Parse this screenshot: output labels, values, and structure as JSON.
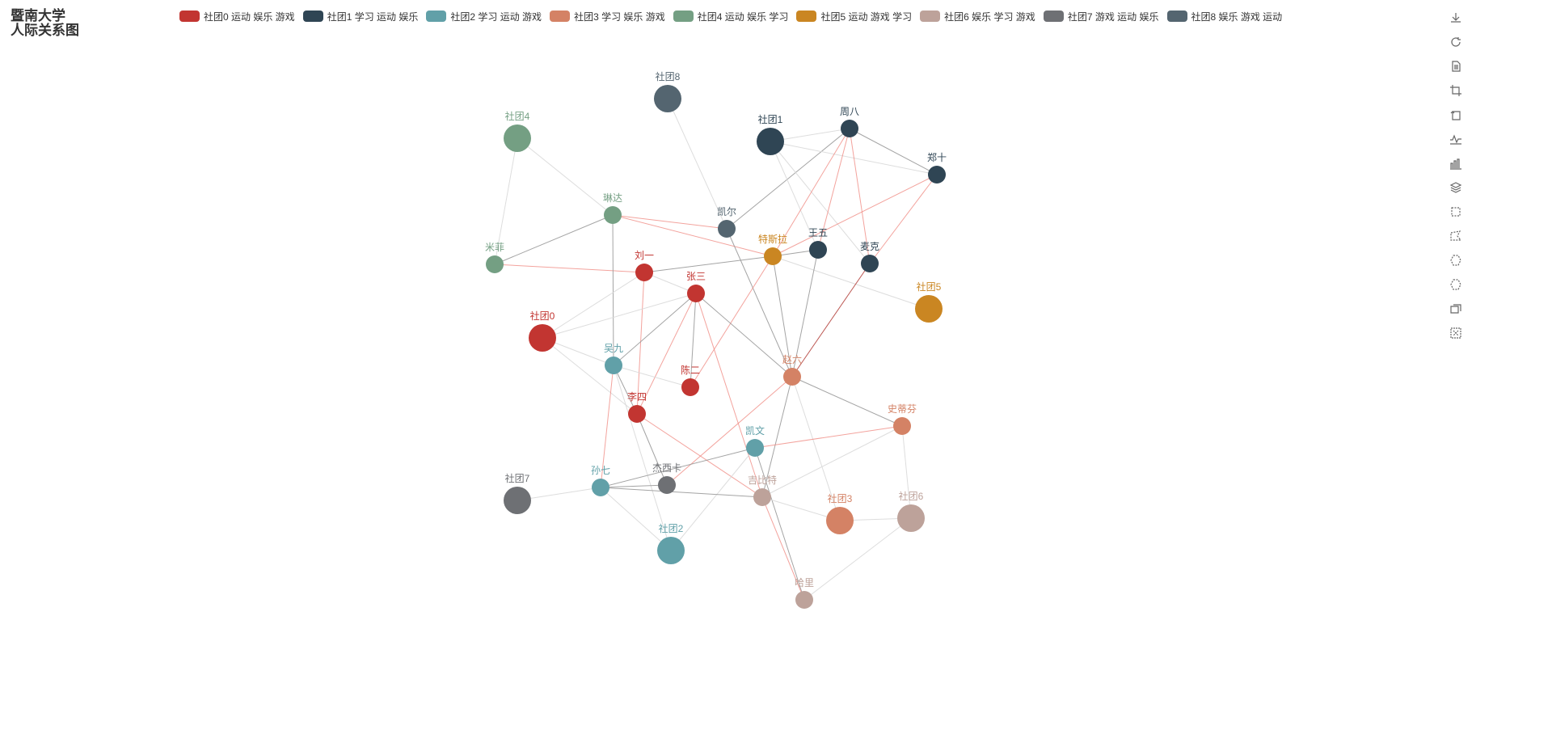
{
  "title": {
    "line1": "暨南大学",
    "line2": "人际关系图"
  },
  "legend": [
    {
      "name": "社团0 运动 娱乐 游戏",
      "color": "#c23531"
    },
    {
      "name": "社团1 学习 运动 娱乐",
      "color": "#2f4554"
    },
    {
      "name": "社团2 学习 运动 游戏",
      "color": "#61a0a8"
    },
    {
      "name": "社团3 学习 娱乐 游戏",
      "color": "#d48265"
    },
    {
      "name": "社团4 运动 娱乐 学习",
      "color": "#749f83"
    },
    {
      "name": "社团5 运动 游戏 学习",
      "color": "#ca8622"
    },
    {
      "name": "社团6 娱乐 学习 游戏",
      "color": "#bda29a"
    },
    {
      "name": "社团7 游戏 运动 娱乐",
      "color": "#6e7074"
    },
    {
      "name": "社团8 娱乐 游戏 运动",
      "color": "#546570"
    }
  ],
  "toolbox": [
    {
      "name": "save-image-icon"
    },
    {
      "name": "restore-icon"
    },
    {
      "name": "data-view-icon"
    },
    {
      "name": "zoom-icon"
    },
    {
      "name": "zoom-back-icon"
    },
    {
      "name": "line-chart-icon"
    },
    {
      "name": "bar-chart-icon"
    },
    {
      "name": "stack-icon"
    },
    {
      "name": "rect-select-icon"
    },
    {
      "name": "polygon-select-icon"
    },
    {
      "name": "keep-select-icon"
    },
    {
      "name": "clear-select-icon"
    },
    {
      "name": "tiled-icon"
    },
    {
      "name": "clear-icon"
    }
  ],
  "nodes": [
    {
      "name": "社团0",
      "category": 0,
      "big": true
    },
    {
      "name": "社团1",
      "category": 1,
      "big": true
    },
    {
      "name": "社团2",
      "category": 2,
      "big": true
    },
    {
      "name": "社团3",
      "category": 3,
      "big": true
    },
    {
      "name": "社团4",
      "category": 4,
      "big": true
    },
    {
      "name": "社团5",
      "category": 5,
      "big": true
    },
    {
      "name": "社团6",
      "category": 6,
      "big": true
    },
    {
      "name": "社团7",
      "category": 7,
      "big": true
    },
    {
      "name": "社团8",
      "category": 8,
      "big": true
    },
    {
      "name": "刘一",
      "category": 0
    },
    {
      "name": "张三",
      "category": 0
    },
    {
      "name": "李四",
      "category": 0
    },
    {
      "name": "陈二",
      "category": 0
    },
    {
      "name": "周八",
      "category": 1
    },
    {
      "name": "郑十",
      "category": 1
    },
    {
      "name": "王五",
      "category": 1
    },
    {
      "name": "麦克",
      "category": 1
    },
    {
      "name": "吴九",
      "category": 2
    },
    {
      "name": "凯文",
      "category": 2
    },
    {
      "name": "孙七",
      "category": 2
    },
    {
      "name": "赵六",
      "category": 3
    },
    {
      "name": "史蒂芬",
      "category": 3
    },
    {
      "name": "琳达",
      "category": 4
    },
    {
      "name": "米菲",
      "category": 4
    },
    {
      "name": "特斯拉",
      "category": 5
    },
    {
      "name": "吉比特",
      "category": 6
    },
    {
      "name": "哈里",
      "category": 6
    },
    {
      "name": "杰西卡",
      "category": 7
    },
    {
      "name": "凯尔",
      "category": 8
    }
  ],
  "links": [
    [
      "社团4",
      "琳达",
      "light"
    ],
    [
      "社团4",
      "米菲",
      "light"
    ],
    [
      "米菲",
      "琳达",
      "gray"
    ],
    [
      "米菲",
      "刘一",
      "red"
    ],
    [
      "琳达",
      "凯尔",
      "red"
    ],
    [
      "琳达",
      "特斯拉",
      "red"
    ],
    [
      "琳达",
      "吴九",
      "gray"
    ],
    [
      "社团8",
      "凯尔",
      "light"
    ],
    [
      "凯尔",
      "周八",
      "gray"
    ],
    [
      "凯尔",
      "赵六",
      "gray"
    ],
    [
      "社团1",
      "周八",
      "light"
    ],
    [
      "社团1",
      "郑十",
      "light"
    ],
    [
      "社团1",
      "麦克",
      "light"
    ],
    [
      "社团1",
      "王五",
      "light"
    ],
    [
      "周八",
      "郑十",
      "gray"
    ],
    [
      "周八",
      "特斯拉",
      "red"
    ],
    [
      "周八",
      "麦克",
      "red"
    ],
    [
      "周八",
      "王五",
      "red"
    ],
    [
      "郑十",
      "麦克",
      "red"
    ],
    [
      "郑十",
      "特斯拉",
      "red"
    ],
    [
      "特斯拉",
      "王五",
      "gray"
    ],
    [
      "特斯拉",
      "刘一",
      "gray"
    ],
    [
      "特斯拉",
      "社团5",
      "light"
    ],
    [
      "特斯拉",
      "赵六",
      "gray"
    ],
    [
      "特斯拉",
      "陈二",
      "red"
    ],
    [
      "王五",
      "赵六",
      "gray"
    ],
    [
      "麦克",
      "赵六",
      "darkred"
    ],
    [
      "社团0",
      "刘一",
      "light"
    ],
    [
      "社团0",
      "吴九",
      "light"
    ],
    [
      "社团0",
      "李四",
      "light"
    ],
    [
      "刘一",
      "李四",
      "red"
    ],
    [
      "刘一",
      "张三",
      "light"
    ],
    [
      "张三",
      "吴九",
      "gray"
    ],
    [
      "张三",
      "陈二",
      "gray"
    ],
    [
      "张三",
      "赵六",
      "gray"
    ],
    [
      "张三",
      "吉比特",
      "red"
    ],
    [
      "张三",
      "李四",
      "red"
    ],
    [
      "张三",
      "社团0",
      "light"
    ],
    [
      "吴九",
      "李四",
      "gray"
    ],
    [
      "吴九",
      "孙七",
      "red"
    ],
    [
      "吴九",
      "陈二",
      "light"
    ],
    [
      "吴九",
      "社团2",
      "light"
    ],
    [
      "李四",
      "吉比特",
      "red"
    ],
    [
      "李四",
      "杰西卡",
      "gray"
    ],
    [
      "赵六",
      "史蒂芬",
      "gray"
    ],
    [
      "赵六",
      "吉比特",
      "gray"
    ],
    [
      "赵六",
      "杰西卡",
      "red"
    ],
    [
      "赵六",
      "社团3",
      "light"
    ],
    [
      "史蒂芬",
      "凯文",
      "red"
    ],
    [
      "史蒂芬",
      "社团6",
      "light"
    ],
    [
      "史蒂芬",
      "吉比特",
      "light"
    ],
    [
      "凯文",
      "孙七",
      "gray"
    ],
    [
      "凯文",
      "社团2",
      "light"
    ],
    [
      "凯文",
      "哈里",
      "gray"
    ],
    [
      "孙七",
      "杰西卡",
      "gray"
    ],
    [
      "孙七",
      "吉比特",
      "gray"
    ],
    [
      "孙七",
      "社团7",
      "light"
    ],
    [
      "孙七",
      "社团2",
      "light"
    ],
    [
      "吉比特",
      "哈里",
      "red"
    ],
    [
      "吉比特",
      "社团3",
      "light"
    ],
    [
      "社团6",
      "哈里",
      "light"
    ],
    [
      "社团3",
      "社团6",
      "light"
    ]
  ]
}
